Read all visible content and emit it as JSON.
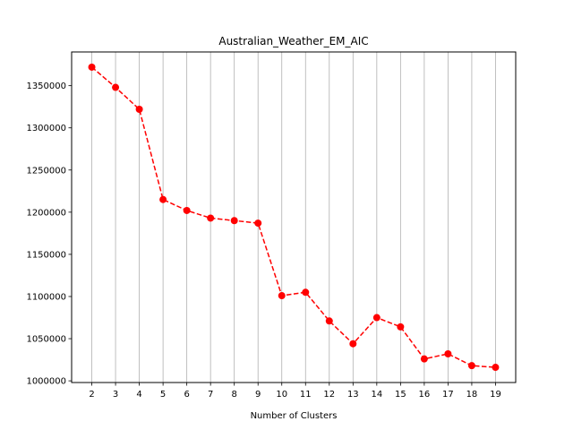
{
  "chart_data": {
    "type": "line",
    "title": "Australian_Weather_EM_AIC",
    "xlabel": "Number of Clusters",
    "ylabel": "",
    "x": [
      2,
      3,
      4,
      5,
      6,
      7,
      8,
      9,
      10,
      11,
      12,
      13,
      14,
      15,
      16,
      17,
      18,
      19
    ],
    "y": [
      1372000,
      1348000,
      1322000,
      1215000,
      1202000,
      1193000,
      1190000,
      1187000,
      1101000,
      1105000,
      1071000,
      1044000,
      1075000,
      1064000,
      1026000,
      1032000,
      1018000,
      1016000
    ],
    "xticks": [
      2,
      3,
      4,
      5,
      6,
      7,
      8,
      9,
      10,
      11,
      12,
      13,
      14,
      15,
      16,
      17,
      18,
      19
    ],
    "yticks": [
      1000000,
      1050000,
      1100000,
      1150000,
      1200000,
      1250000,
      1300000,
      1350000
    ],
    "ylim": [
      998000,
      1390000
    ],
    "xlim": [
      1.15,
      19.85
    ],
    "grid": "vertical",
    "line_color": "#ff0000",
    "line_style": "dashed",
    "marker": "circle"
  }
}
